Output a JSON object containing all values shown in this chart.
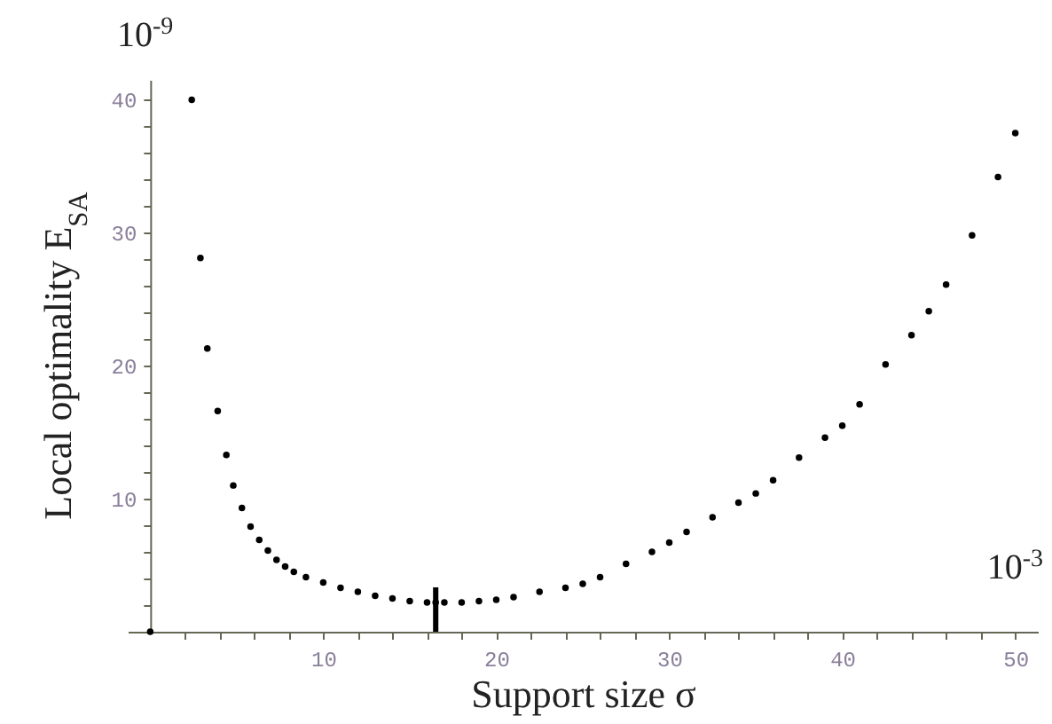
{
  "chart_data": {
    "type": "scatter",
    "xlabel": "Support size σ",
    "ylabel": "Local optimality E$_{SA}$",
    "annotations": [
      "10$^{-9}$",
      "10$^{-3}$"
    ],
    "x": [
      0,
      2.4,
      2.9,
      3.3,
      3.9,
      4.4,
      4.8,
      5.3,
      5.8,
      6.3,
      6.8,
      7.3,
      7.8,
      8.3,
      9,
      10,
      11,
      12,
      13,
      14,
      15,
      16,
      16.5,
      17,
      18,
      19,
      20,
      21,
      22.5,
      24,
      25,
      26,
      27.5,
      29,
      30,
      31,
      32.5,
      34,
      35,
      36,
      37.5,
      39,
      40,
      41,
      42.5,
      44,
      45,
      46,
      47.5,
      49,
      50
    ],
    "series": [
      {
        "color": "#000000",
        "values": [
          0,
          40,
          28.1,
          21.3,
          16.6,
          13.3,
          11,
          9.3,
          7.9,
          6.9,
          6.1,
          5.4,
          4.9,
          4.5,
          4.1,
          3.7,
          3.3,
          3,
          2.7,
          2.5,
          2.3,
          2.2,
          2.2,
          2.2,
          2.2,
          2.3,
          2.4,
          2.6,
          3,
          3.3,
          3.6,
          4.1,
          5.1,
          6,
          6.7,
          7.5,
          8.6,
          9.7,
          10.4,
          11.4,
          13.1,
          14.6,
          15.5,
          17.1,
          20.1,
          22.3,
          24.1,
          26.1,
          29.8,
          34.2,
          37.5
        ]
      }
    ],
    "xlim": [
      -1.3,
      51.3
    ],
    "ylim": [
      0,
      41.5
    ],
    "xticks": [
      {
        "value": 2,
        "label": null
      },
      {
        "value": 4,
        "label": null
      },
      {
        "value": 6,
        "label": null
      },
      {
        "value": 8,
        "label": null
      },
      10,
      {
        "value": 12,
        "label": null
      },
      {
        "value": 14,
        "label": null
      },
      {
        "value": 16,
        "label": null
      },
      {
        "value": 18,
        "label": null
      },
      20,
      {
        "value": 22,
        "label": null
      },
      {
        "value": 24,
        "label": null
      },
      {
        "value": 26,
        "label": null
      },
      {
        "value": 28,
        "label": null
      },
      30,
      {
        "value": 32,
        "label": null
      },
      {
        "value": 34,
        "label": null
      },
      {
        "value": 36,
        "label": null
      },
      {
        "value": 38,
        "label": null
      },
      40,
      {
        "value": 42,
        "label": null
      },
      {
        "value": 44,
        "label": null
      },
      {
        "value": 46,
        "label": null
      },
      {
        "value": 48,
        "label": null
      },
      50
    ],
    "yticks": [
      {
        "value": 2,
        "label": null
      },
      {
        "value": 4,
        "label": null
      },
      {
        "value": 6,
        "label": null
      },
      {
        "value": 8,
        "label": null
      },
      10,
      {
        "value": 12,
        "label": null
      },
      {
        "value": 14,
        "label": null
      },
      {
        "value": 16,
        "label": null
      },
      {
        "value": 18,
        "label": null
      },
      20,
      {
        "value": 22,
        "label": null
      },
      {
        "value": 24,
        "label": null
      },
      {
        "value": 26,
        "label": null
      },
      {
        "value": 28,
        "label": null
      },
      30,
      {
        "value": 32,
        "label": null
      },
      {
        "value": 34,
        "label": null
      },
      {
        "value": 36,
        "label": null
      },
      {
        "value": 38,
        "label": null
      },
      40
    ],
    "ref_lines": [
      {
        "axis": "x",
        "value": 16.5
      }
    ],
    "marker": "circle",
    "grid": false
  }
}
